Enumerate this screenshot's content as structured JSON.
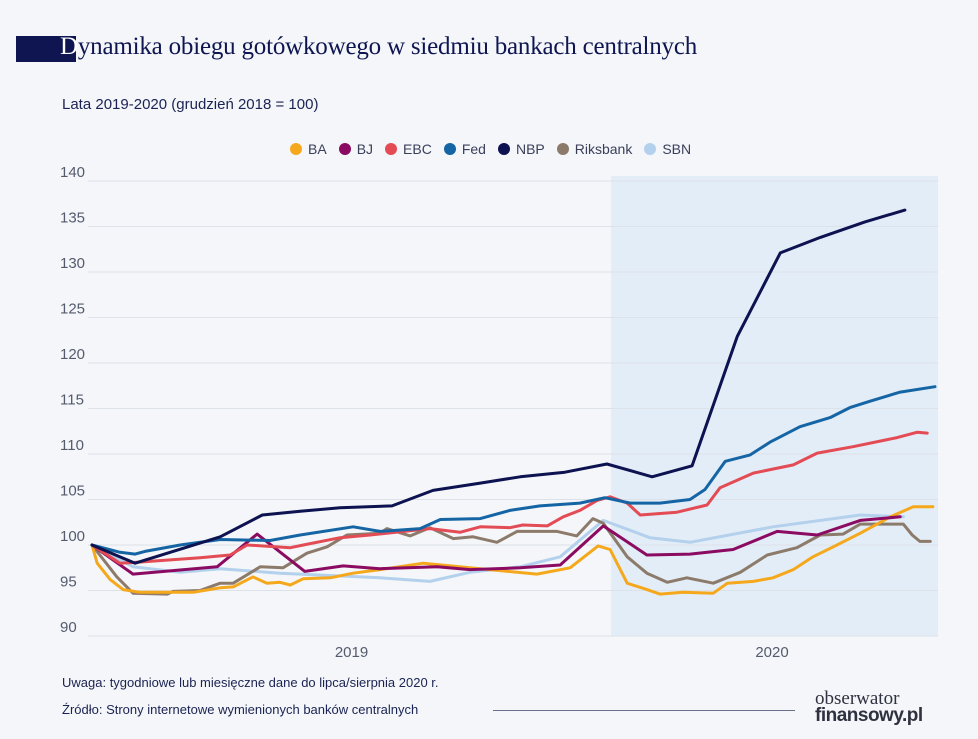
{
  "title": {
    "first_letter": "D",
    "rest": "ynamika obiegu gotówkowego w siedmiu bankach centralnych"
  },
  "subtitle": "Lata 2019-2020 (grudzień 2018 = 100)",
  "footer": {
    "note": "Uwaga: tygodniowe lub miesięczne dane do lipca/sierpnia 2020 r.",
    "source": "Źródło: Strony internetowe wymienionych banków centralnych",
    "logo_line1": "obserwator",
    "logo_line2": "finansowy.pl"
  },
  "chart_data": {
    "type": "line",
    "title": "Dynamika obiegu gotówkowego w siedmiu bankach centralnych",
    "subtitle": "Lata 2019-2020 (grudzień 2018 = 100)",
    "xlabel": "",
    "ylabel": "",
    "xlim": [
      2019.0,
      2020.624
    ],
    "ylim": [
      90,
      140
    ],
    "yticks": [
      90,
      95,
      100,
      105,
      110,
      115,
      120,
      125,
      130,
      135,
      140
    ],
    "xticks": [
      {
        "label": "2019",
        "x": 2019.5
      },
      {
        "label": "2020",
        "x": 2020.31
      }
    ],
    "shaded_region": {
      "from": 2020.0,
      "to": 2020.624,
      "color": "#e3edf7"
    },
    "grid": "horizontal",
    "legend": "top-center",
    "series": [
      {
        "name": "BA",
        "color": "#f5a81c",
        "points": [
          [
            2019.0,
            100
          ],
          [
            2019.01,
            98.0
          ],
          [
            2019.035,
            96.2
          ],
          [
            2019.06,
            95.1
          ],
          [
            2019.092,
            94.8
          ],
          [
            2019.145,
            94.8
          ],
          [
            2019.195,
            94.8
          ],
          [
            2019.247,
            95.3
          ],
          [
            2019.272,
            95.4
          ],
          [
            2019.31,
            96.5
          ],
          [
            2019.337,
            95.8
          ],
          [
            2019.362,
            95.9
          ],
          [
            2019.382,
            95.6
          ],
          [
            2019.407,
            96.3
          ],
          [
            2019.459,
            96.4
          ],
          [
            2019.503,
            96.9
          ],
          [
            2019.555,
            97.3
          ],
          [
            2019.638,
            98.0
          ],
          [
            2019.728,
            97.5
          ],
          [
            2019.857,
            96.8
          ],
          [
            2019.921,
            97.5
          ],
          [
            2019.975,
            99.9
          ],
          [
            2019.998,
            99.5
          ],
          [
            2020.031,
            95.8
          ],
          [
            2020.069,
            95.1
          ],
          [
            2020.094,
            94.6
          ],
          [
            2020.139,
            94.8
          ],
          [
            2020.197,
            94.7
          ],
          [
            2020.224,
            95.8
          ],
          [
            2020.274,
            96.0
          ],
          [
            2020.312,
            96.4
          ],
          [
            2020.351,
            97.3
          ],
          [
            2020.389,
            98.7
          ],
          [
            2020.428,
            99.8
          ],
          [
            2020.48,
            101.3
          ],
          [
            2020.538,
            103.1
          ],
          [
            2020.582,
            104.2
          ],
          [
            2020.62,
            104.2
          ]
        ]
      },
      {
        "name": "BJ",
        "color": "#8b0b62",
        "points": [
          [
            2019.0,
            100
          ],
          [
            2019.079,
            96.8
          ],
          [
            2019.241,
            97.6
          ],
          [
            2019.318,
            101.2
          ],
          [
            2019.41,
            97.1
          ],
          [
            2019.484,
            97.7
          ],
          [
            2019.555,
            97.4
          ],
          [
            2019.665,
            97.6
          ],
          [
            2019.728,
            97.3
          ],
          [
            2019.825,
            97.5
          ],
          [
            2019.902,
            97.8
          ],
          [
            2019.985,
            102.1
          ],
          [
            2020.069,
            98.9
          ],
          [
            2020.152,
            99.0
          ],
          [
            2020.235,
            99.5
          ],
          [
            2020.32,
            101.5
          ],
          [
            2020.397,
            101.1
          ],
          [
            2020.48,
            102.7
          ],
          [
            2020.557,
            103.1
          ]
        ]
      },
      {
        "name": "EBC",
        "color": "#e34b55",
        "points": [
          [
            2019.0,
            100
          ],
          [
            2019.054,
            98.0
          ],
          [
            2019.087,
            98.1
          ],
          [
            2019.208,
            98.6
          ],
          [
            2019.266,
            98.9
          ],
          [
            2019.299,
            100.0
          ],
          [
            2019.382,
            99.7
          ],
          [
            2019.407,
            100.0
          ],
          [
            2019.478,
            100.8
          ],
          [
            2019.536,
            101.1
          ],
          [
            2019.651,
            101.8
          ],
          [
            2019.709,
            101.4
          ],
          [
            2019.748,
            102.0
          ],
          [
            2019.805,
            101.9
          ],
          [
            2019.83,
            102.2
          ],
          [
            2019.877,
            102.1
          ],
          [
            2019.908,
            103.1
          ],
          [
            2019.94,
            103.8
          ],
          [
            2019.973,
            104.9
          ],
          [
            2019.998,
            105.3
          ],
          [
            2020.031,
            104.6
          ],
          [
            2020.056,
            103.3
          ],
          [
            2020.127,
            103.6
          ],
          [
            2020.185,
            104.4
          ],
          [
            2020.21,
            106.3
          ],
          [
            2020.274,
            107.9
          ],
          [
            2020.351,
            108.8
          ],
          [
            2020.397,
            110.1
          ],
          [
            2020.466,
            110.8
          ],
          [
            2020.551,
            111.8
          ],
          [
            2020.59,
            112.4
          ],
          [
            2020.609,
            112.3
          ]
        ]
      },
      {
        "name": "Fed",
        "color": "#1565a5",
        "points": [
          [
            2019.0,
            100
          ],
          [
            2019.054,
            99.2
          ],
          [
            2019.083,
            99.0
          ],
          [
            2019.102,
            99.3
          ],
          [
            2019.17,
            100.0
          ],
          [
            2019.247,
            100.6
          ],
          [
            2019.343,
            100.5
          ],
          [
            2019.401,
            101.1
          ],
          [
            2019.503,
            102.0
          ],
          [
            2019.555,
            101.5
          ],
          [
            2019.632,
            101.8
          ],
          [
            2019.671,
            102.8
          ],
          [
            2019.748,
            102.9
          ],
          [
            2019.805,
            103.8
          ],
          [
            2019.863,
            104.3
          ],
          [
            2019.94,
            104.6
          ],
          [
            2019.988,
            105.2
          ],
          [
            2020.037,
            104.6
          ],
          [
            2020.094,
            104.6
          ],
          [
            2020.152,
            105.0
          ],
          [
            2020.181,
            106.1
          ],
          [
            2020.22,
            109.2
          ],
          [
            2020.268,
            109.9
          ],
          [
            2020.306,
            111.3
          ],
          [
            2020.364,
            113.0
          ],
          [
            2020.422,
            114.0
          ],
          [
            2020.46,
            115.1
          ],
          [
            2020.499,
            115.8
          ],
          [
            2020.557,
            116.8
          ],
          [
            2020.624,
            117.4
          ]
        ]
      },
      {
        "name": "NBP",
        "color": "#0d1250",
        "points": [
          [
            2019.0,
            100
          ],
          [
            2019.083,
            98.0
          ],
          [
            2019.247,
            100.9
          ],
          [
            2019.328,
            103.3
          ],
          [
            2019.401,
            103.7
          ],
          [
            2019.478,
            104.1
          ],
          [
            2019.578,
            104.3
          ],
          [
            2019.657,
            106.0
          ],
          [
            2019.748,
            106.8
          ],
          [
            2019.825,
            107.5
          ],
          [
            2019.911,
            108.0
          ],
          [
            2019.992,
            108.9
          ],
          [
            2020.079,
            107.5
          ],
          [
            2020.156,
            108.7
          ],
          [
            2020.243,
            122.9
          ],
          [
            2020.326,
            132.1
          ],
          [
            2020.403,
            133.8
          ],
          [
            2020.489,
            135.5
          ],
          [
            2020.566,
            136.8
          ]
        ]
      },
      {
        "name": "Riksbank",
        "color": "#8c7b6b",
        "points": [
          [
            2019.0,
            100
          ],
          [
            2019.048,
            96.5
          ],
          [
            2019.079,
            94.7
          ],
          [
            2019.145,
            94.6
          ],
          [
            2019.156,
            94.9
          ],
          [
            2019.208,
            95.0
          ],
          [
            2019.247,
            95.8
          ],
          [
            2019.272,
            95.8
          ],
          [
            2019.324,
            97.6
          ],
          [
            2019.368,
            97.5
          ],
          [
            2019.414,
            99.1
          ],
          [
            2019.453,
            99.8
          ],
          [
            2019.491,
            101.1
          ],
          [
            2019.555,
            101.3
          ],
          [
            2019.568,
            101.8
          ],
          [
            2019.613,
            101.0
          ],
          [
            2019.651,
            101.9
          ],
          [
            2019.696,
            100.7
          ],
          [
            2019.734,
            100.9
          ],
          [
            2019.78,
            100.3
          ],
          [
            2019.819,
            101.5
          ],
          [
            2019.896,
            101.5
          ],
          [
            2019.934,
            101.0
          ],
          [
            2019.965,
            102.9
          ],
          [
            2019.985,
            102.4
          ],
          [
            2020.031,
            98.7
          ],
          [
            2020.069,
            96.9
          ],
          [
            2020.108,
            95.9
          ],
          [
            2020.146,
            96.4
          ],
          [
            2020.197,
            95.8
          ],
          [
            2020.249,
            97.0
          ],
          [
            2020.301,
            98.9
          ],
          [
            2020.358,
            99.7
          ],
          [
            2020.403,
            101.1
          ],
          [
            2020.447,
            101.2
          ],
          [
            2020.48,
            102.3
          ],
          [
            2020.563,
            102.3
          ],
          [
            2020.58,
            101.1
          ],
          [
            2020.595,
            100.4
          ],
          [
            2020.615,
            100.4
          ]
        ]
      },
      {
        "name": "SBN",
        "color": "#b3d1ec",
        "points": [
          [
            2019.0,
            100
          ],
          [
            2019.079,
            97.6
          ],
          [
            2019.17,
            97.0
          ],
          [
            2019.247,
            97.4
          ],
          [
            2019.362,
            96.9
          ],
          [
            2019.555,
            96.4
          ],
          [
            2019.651,
            96.0
          ],
          [
            2019.728,
            97.0
          ],
          [
            2019.825,
            97.6
          ],
          [
            2019.902,
            98.7
          ],
          [
            2019.985,
            102.7
          ],
          [
            2020.075,
            100.8
          ],
          [
            2020.152,
            100.3
          ],
          [
            2020.312,
            102.0
          ],
          [
            2020.48,
            103.3
          ],
          [
            2020.563,
            103.1
          ]
        ]
      }
    ]
  }
}
